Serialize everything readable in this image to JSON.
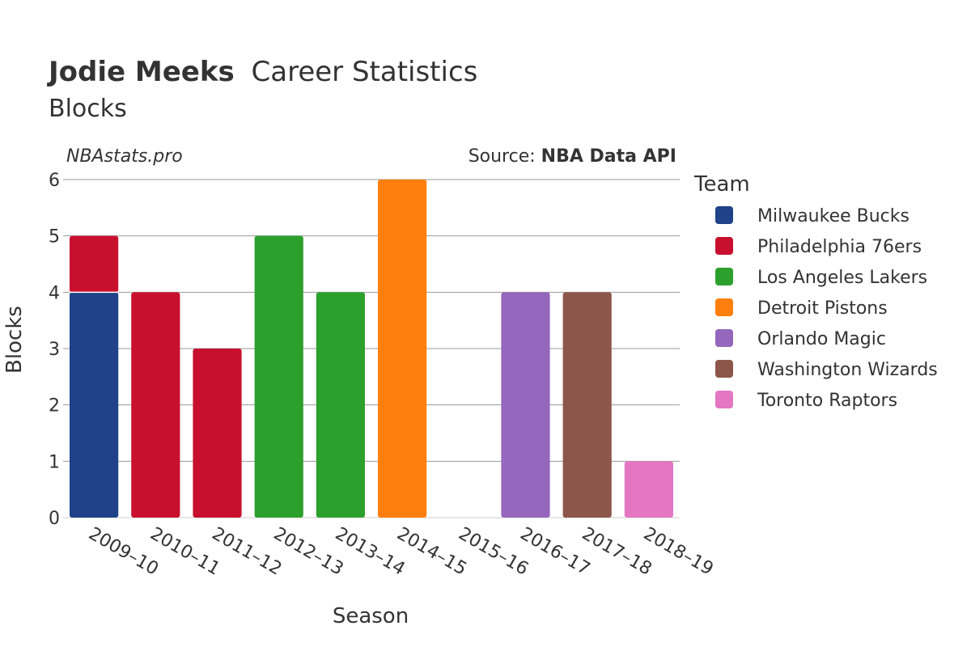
{
  "header": {
    "player_name": "Jodie Meeks",
    "title_rest": "Career Statistics",
    "subtitle": "Blocks",
    "brand": "NBAstats.pro",
    "source_prefix": "Source: ",
    "source_name": "NBA Data API"
  },
  "chart_data": {
    "type": "bar",
    "stacked": true,
    "xlabel": "Season",
    "ylabel": "Blocks",
    "ylim": [
      0,
      6
    ],
    "yticks": [
      0,
      1,
      2,
      3,
      4,
      5,
      6
    ],
    "grid": true,
    "legend_position": "right",
    "legend_title": "Team",
    "categories": [
      "2009–10",
      "2010–11",
      "2011–12",
      "2012–13",
      "2013–14",
      "2014–15",
      "2015–16",
      "2016–17",
      "2017–18",
      "2018–19"
    ],
    "series": [
      {
        "name": "Milwaukee Bucks",
        "color": "#1f4288",
        "values": [
          4,
          0,
          0,
          0,
          0,
          0,
          0,
          0,
          0,
          0
        ]
      },
      {
        "name": "Philadelphia 76ers",
        "color": "#c8102e",
        "values": [
          1,
          4,
          3,
          0,
          0,
          0,
          0,
          0,
          0,
          0
        ]
      },
      {
        "name": "Los Angeles Lakers",
        "color": "#2ca02c",
        "values": [
          0,
          0,
          0,
          5,
          4,
          0,
          0,
          0,
          0,
          0
        ]
      },
      {
        "name": "Detroit Pistons",
        "color": "#ff7f0e",
        "values": [
          0,
          0,
          0,
          0,
          0,
          6,
          0,
          0,
          0,
          0
        ]
      },
      {
        "name": "Orlando Magic",
        "color": "#9467bd",
        "values": [
          0,
          0,
          0,
          0,
          0,
          0,
          0,
          4,
          0,
          0
        ]
      },
      {
        "name": "Washington Wizards",
        "color": "#8c564b",
        "values": [
          0,
          0,
          0,
          0,
          0,
          0,
          0,
          0,
          4,
          0
        ]
      },
      {
        "name": "Toronto Raptors",
        "color": "#e377c2",
        "values": [
          0,
          0,
          0,
          0,
          0,
          0,
          0,
          0,
          0,
          1
        ]
      }
    ]
  }
}
